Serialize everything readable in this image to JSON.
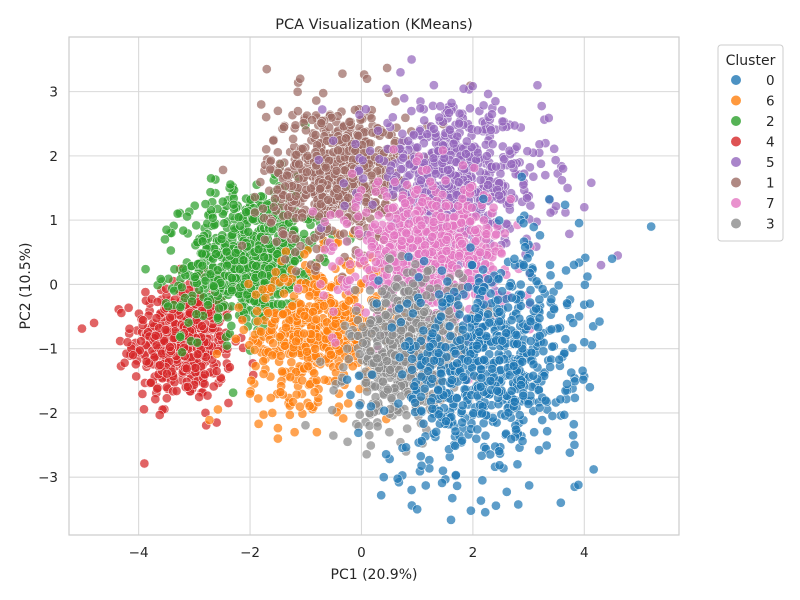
{
  "chart_data": {
    "type": "scatter",
    "title": "PCA Visualization (KMeans)",
    "xlabel": "PC1 (20.9%)",
    "ylabel": "PC2 (10.5%)",
    "xlim": [
      -5.25,
      5.7
    ],
    "ylim": [
      -3.9,
      3.85
    ],
    "xticks": [
      -4,
      -2,
      0,
      2,
      4
    ],
    "yticks": [
      -3,
      -2,
      -1,
      0,
      1,
      2,
      3
    ],
    "grid": true,
    "legend": {
      "title": "Cluster",
      "placement": "outside-right-top"
    },
    "series": [
      {
        "name": "0",
        "color": "#1f77b4",
        "n": 700,
        "cx": 2.3,
        "cy": -1.2,
        "sx": 0.8,
        "sy": 0.85,
        "rho": 0.2,
        "extra": [
          [
            5.2,
            0.9
          ],
          [
            4.5,
            0.4
          ],
          [
            4.1,
            -1.6
          ],
          [
            4.0,
            -0.9
          ],
          [
            1.0,
            -3.5
          ],
          [
            0.4,
            -3.0
          ],
          [
            0.9,
            -3.2
          ],
          [
            2.8,
            -2.8
          ],
          [
            3.1,
            -2.3
          ],
          [
            4.1,
            -0.3
          ],
          [
            3.8,
            -0.6
          ],
          [
            3.2,
            -0.8
          ]
        ]
      },
      {
        "name": "6",
        "color": "#ff7f0e",
        "n": 520,
        "cx": -0.8,
        "cy": -0.7,
        "sx": 0.6,
        "sy": 0.55,
        "rho": 0.15,
        "extra": [
          [
            -1.5,
            -2.4
          ],
          [
            -1.2,
            -2.3
          ],
          [
            -2.0,
            -1.7
          ],
          [
            -1.6,
            -2.0
          ],
          [
            -0.8,
            -2.3
          ],
          [
            0.1,
            -1.6
          ]
        ]
      },
      {
        "name": "2",
        "color": "#2ca02c",
        "n": 700,
        "cx": -2.0,
        "cy": 0.45,
        "sx": 0.6,
        "sy": 0.55,
        "rho": 0.2,
        "extra": [
          [
            -3.5,
            0.85
          ],
          [
            -2.7,
            1.65
          ],
          [
            -3.3,
            1.1
          ],
          [
            -2.8,
            1.25
          ]
        ]
      },
      {
        "name": "4",
        "color": "#d62728",
        "n": 500,
        "cx": -3.2,
        "cy": -0.9,
        "sx": 0.45,
        "sy": 0.45,
        "rho": 0.0,
        "extra": [
          [
            -4.8,
            -0.6
          ],
          [
            -4.2,
            -0.9
          ],
          [
            -4.1,
            -1.1
          ],
          [
            -2.6,
            -2.15
          ],
          [
            -2.8,
            -2.0
          ]
        ]
      },
      {
        "name": "5",
        "color": "#9467bd",
        "n": 600,
        "cx": 1.7,
        "cy": 1.65,
        "sx": 0.8,
        "sy": 0.55,
        "rho": -0.1,
        "extra": [
          [
            0.9,
            3.5
          ],
          [
            1.3,
            3.1
          ],
          [
            3.3,
            1.7
          ],
          [
            4.0,
            1.2
          ],
          [
            4.3,
            0.3
          ],
          [
            4.6,
            0.45
          ],
          [
            0.7,
            3.3
          ],
          [
            3.7,
            1.5
          ]
        ]
      },
      {
        "name": "1",
        "color": "#9c6b64",
        "n": 650,
        "cx": -0.4,
        "cy": 1.7,
        "sx": 0.65,
        "sy": 0.55,
        "rho": 0.1,
        "extra": [
          [
            -1.7,
            3.35
          ],
          [
            -1.1,
            3.2
          ],
          [
            -1.8,
            2.8
          ],
          [
            -1.5,
            2.7
          ],
          [
            0.1,
            3.2
          ]
        ]
      },
      {
        "name": "7",
        "color": "#e377c2",
        "n": 650,
        "cx": 1.2,
        "cy": 0.45,
        "sx": 0.7,
        "sy": 0.55,
        "rho": 0.0,
        "extra": [
          [
            0.3,
            1.6
          ],
          [
            2.6,
            0.15
          ]
        ]
      },
      {
        "name": "3",
        "color": "#8c8c8c",
        "n": 550,
        "cx": 0.8,
        "cy": -1.0,
        "sx": 0.5,
        "sy": 0.55,
        "rho": 0.2,
        "extra": [
          [
            -0.25,
            -2.45
          ],
          [
            0.5,
            -2.3
          ],
          [
            0.8,
            -2.6
          ]
        ]
      }
    ]
  }
}
